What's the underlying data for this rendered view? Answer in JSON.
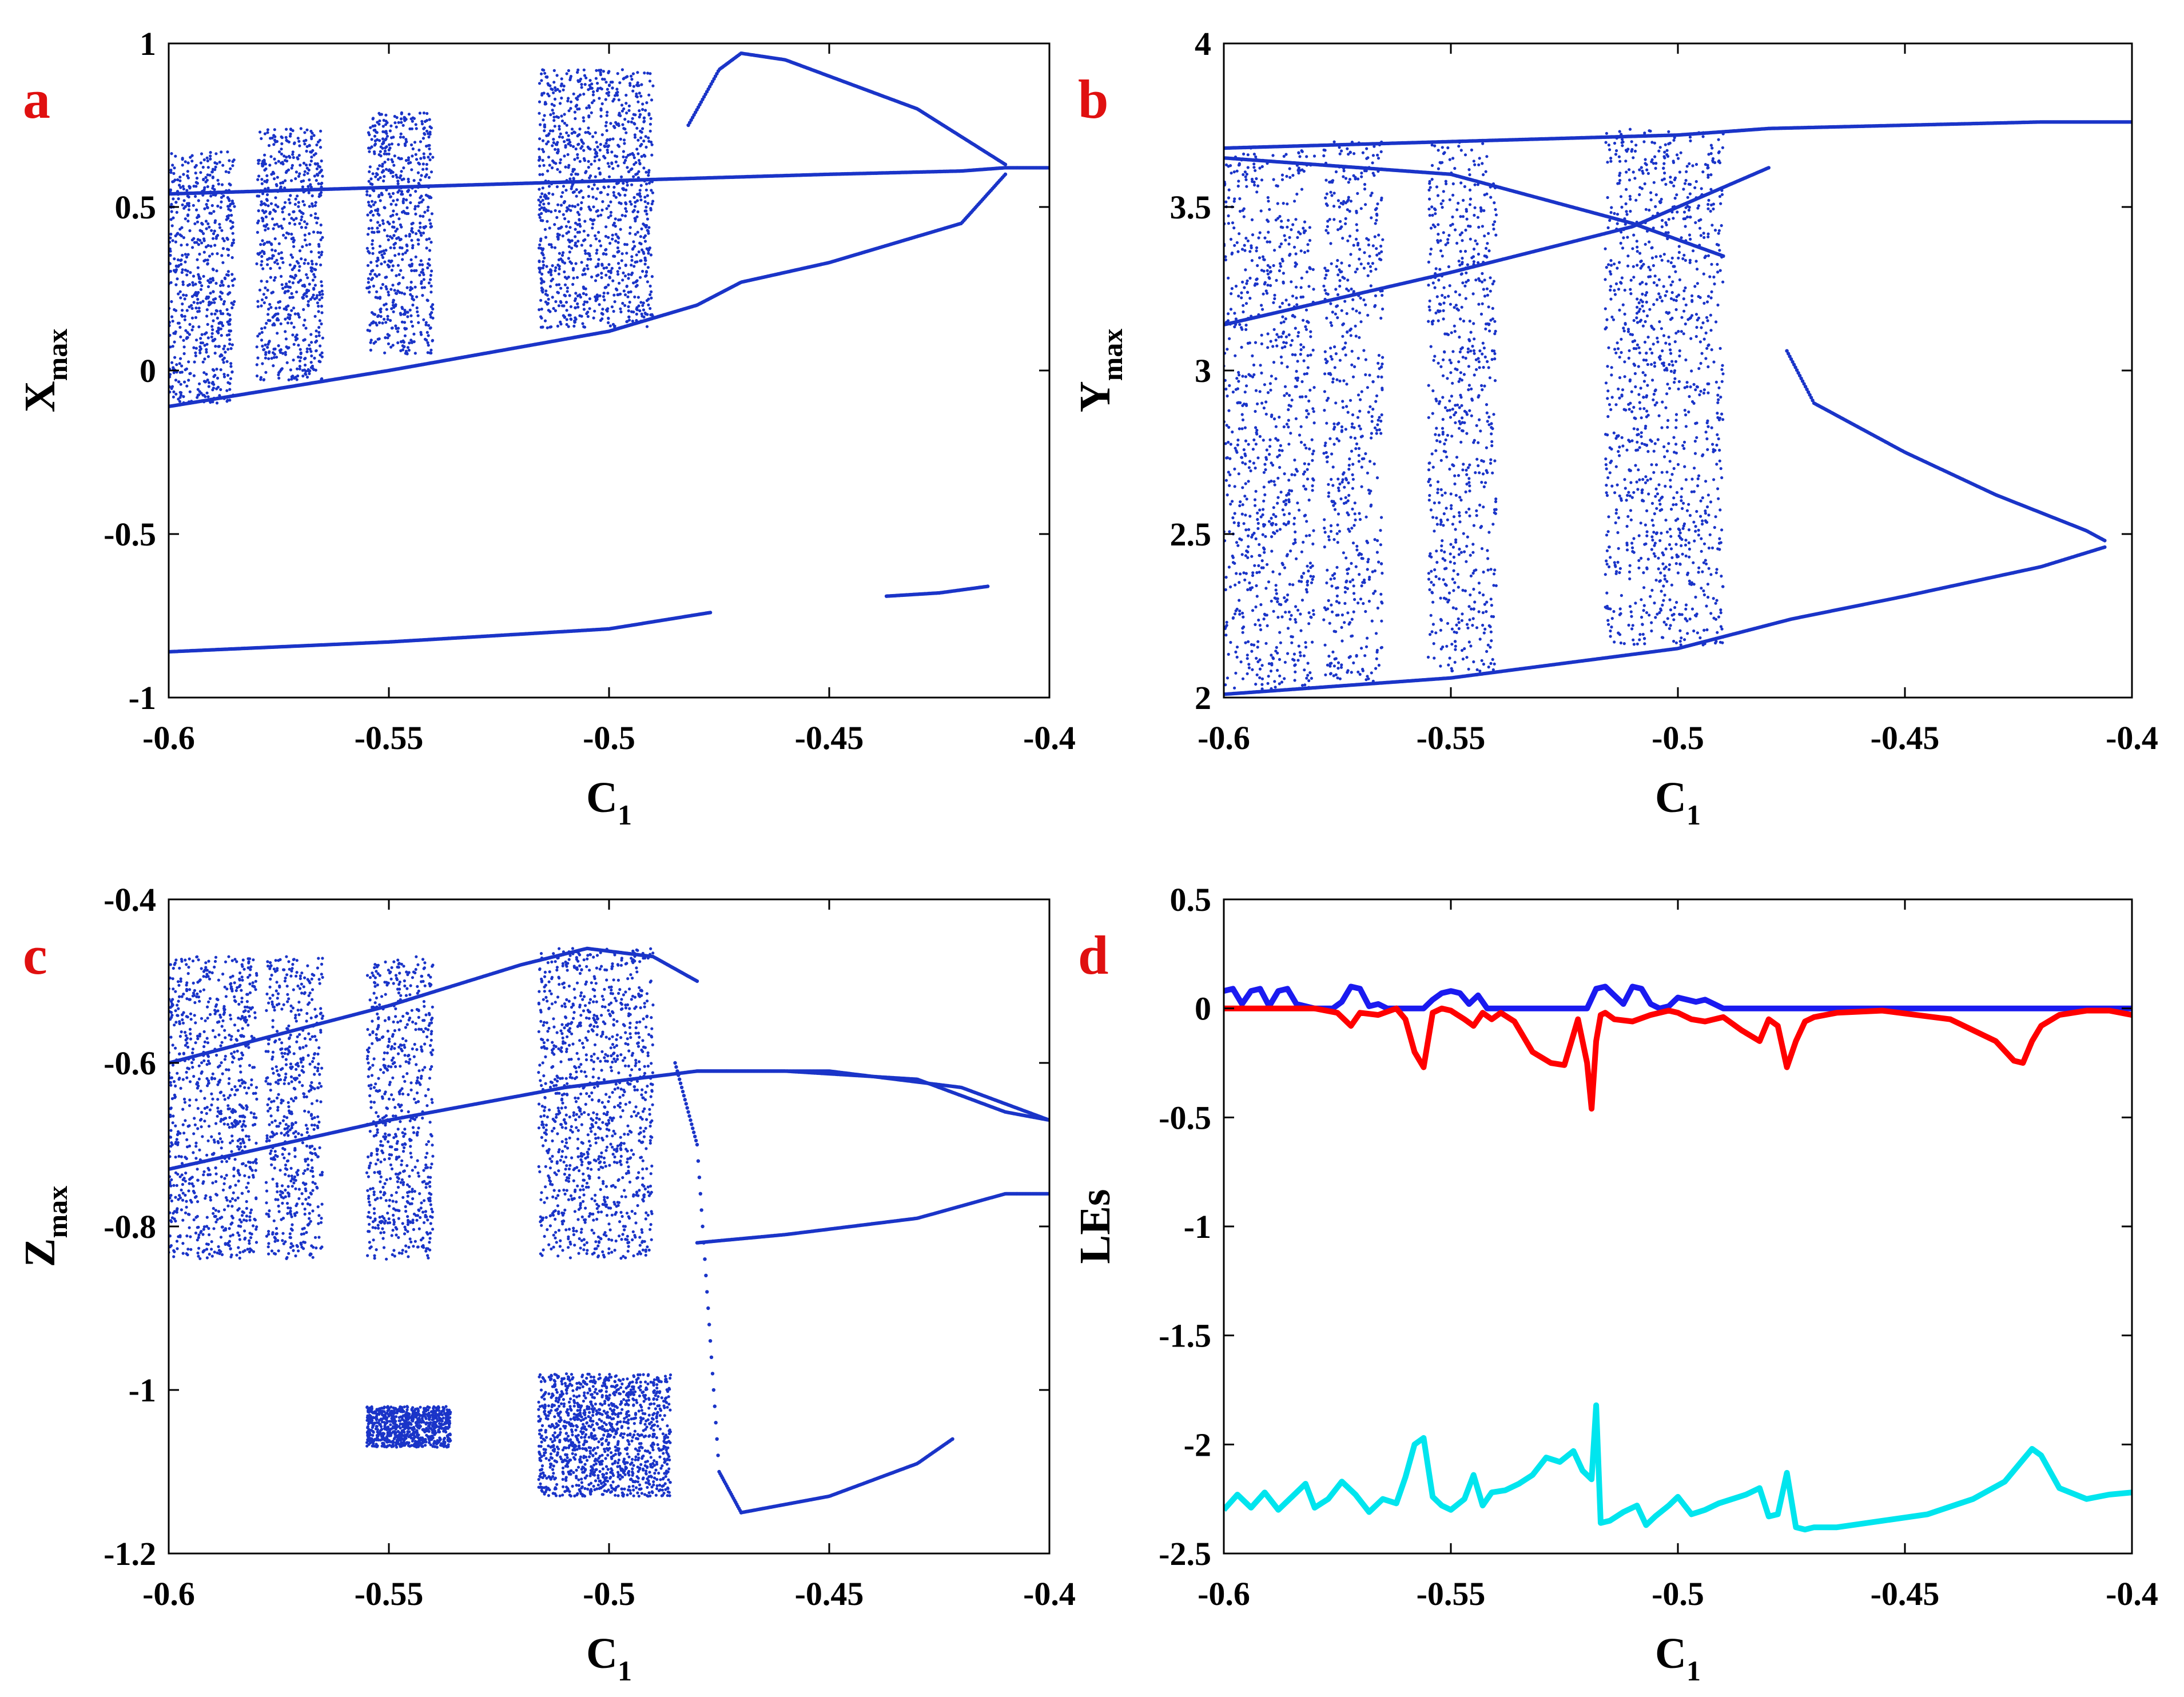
{
  "figure": {
    "panel_letter_color": "#e01010",
    "dot_color": "#1a34c8"
  },
  "chart_data": [
    {
      "id": "a",
      "letter": "a",
      "type": "scatter",
      "title": "",
      "xlabel": "C",
      "xlabel_sub": "1",
      "ylabel": "X",
      "ylabel_sub": "max",
      "xlim": [
        -0.6,
        -0.4
      ],
      "ylim": [
        -1,
        1
      ],
      "xticks": [
        -0.6,
        -0.55,
        -0.5,
        -0.45,
        -0.4
      ],
      "xtick_labels": [
        "-0.6",
        "-0.55",
        "-0.5",
        "-0.45",
        "-0.4"
      ],
      "yticks": [
        -1,
        -0.5,
        0,
        0.5,
        1
      ],
      "ytick_labels": [
        "-1",
        "-0.5",
        "0",
        "0.5",
        "1"
      ],
      "grid": false,
      "description_series": [
        {
          "name": "upper branch",
          "x": [
            -0.6,
            -0.55,
            -0.5,
            -0.475,
            -0.45,
            -0.42,
            -0.41,
            -0.4
          ],
          "y": [
            0.54,
            0.56,
            0.58,
            0.59,
            0.6,
            0.61,
            0.62,
            0.62
          ]
        },
        {
          "name": "lower envelope",
          "x": [
            -0.6,
            -0.55,
            -0.5,
            -0.48,
            -0.47,
            -0.45,
            -0.42,
            -0.41
          ],
          "y": [
            -0.11,
            0.0,
            0.12,
            0.2,
            0.27,
            0.33,
            0.45,
            0.6
          ]
        },
        {
          "name": "period-doubled top",
          "x": [
            -0.482,
            -0.475,
            -0.47,
            -0.46,
            -0.45,
            -0.43,
            -0.41
          ],
          "y": [
            0.75,
            0.92,
            0.97,
            0.95,
            0.9,
            0.8,
            0.63
          ]
        },
        {
          "name": "negative branch 1",
          "x": [
            -0.6,
            -0.55,
            -0.5,
            -0.477
          ],
          "y": [
            -0.86,
            -0.83,
            -0.79,
            -0.74
          ]
        },
        {
          "name": "negative branch 2",
          "x": [
            -0.437,
            -0.425,
            -0.414
          ],
          "y": [
            -0.69,
            -0.68,
            -0.66
          ]
        }
      ],
      "chaotic_bands": [
        {
          "x": [
            -0.6,
            -0.585
          ],
          "y": [
            -0.1,
            0.67
          ]
        },
        {
          "x": [
            -0.58,
            -0.565
          ],
          "y": [
            -0.03,
            0.74
          ]
        },
        {
          "x": [
            -0.555,
            -0.54
          ],
          "y": [
            0.05,
            0.79
          ]
        },
        {
          "x": [
            -0.516,
            -0.49
          ],
          "y": [
            0.13,
            0.92
          ]
        }
      ]
    },
    {
      "id": "b",
      "letter": "b",
      "type": "scatter",
      "title": "",
      "xlabel": "C",
      "xlabel_sub": "1",
      "ylabel": "Y",
      "ylabel_sub": "max",
      "xlim": [
        -0.6,
        -0.4
      ],
      "ylim": [
        2,
        4
      ],
      "xticks": [
        -0.6,
        -0.55,
        -0.5,
        -0.45,
        -0.4
      ],
      "xtick_labels": [
        "-0.6",
        "-0.55",
        "-0.5",
        "-0.45",
        "-0.4"
      ],
      "yticks": [
        2,
        2.5,
        3,
        3.5,
        4
      ],
      "ytick_labels": [
        "2",
        "2.5",
        "3",
        "3.5",
        "4"
      ],
      "grid": false,
      "description_series": [
        {
          "name": "bottom branch",
          "x": [
            -0.6,
            -0.55,
            -0.5,
            -0.475,
            -0.45,
            -0.42,
            -0.406
          ],
          "y": [
            2.01,
            2.06,
            2.15,
            2.24,
            2.31,
            2.4,
            2.46
          ]
        },
        {
          "name": "top branch",
          "x": [
            -0.6,
            -0.55,
            -0.5,
            -0.48,
            -0.45,
            -0.42,
            -0.4
          ],
          "y": [
            3.68,
            3.7,
            3.72,
            3.74,
            3.75,
            3.76,
            3.76
          ]
        },
        {
          "name": "crossing up",
          "x": [
            -0.6,
            -0.55,
            -0.51,
            -0.48
          ],
          "y": [
            3.14,
            3.3,
            3.44,
            3.62
          ]
        },
        {
          "name": "crossing down",
          "x": [
            -0.6,
            -0.55,
            -0.51,
            -0.49
          ],
          "y": [
            3.65,
            3.6,
            3.45,
            3.35
          ]
        },
        {
          "name": "right loop upper",
          "x": [
            -0.476,
            -0.47,
            -0.45,
            -0.43,
            -0.41,
            -0.406
          ],
          "y": [
            3.06,
            2.9,
            2.75,
            2.62,
            2.51,
            2.48
          ]
        }
      ],
      "chaotic_bands": [
        {
          "x": [
            -0.6,
            -0.58
          ],
          "y": [
            2.01,
            3.68
          ]
        },
        {
          "x": [
            -0.578,
            -0.565
          ],
          "y": [
            2.05,
            3.7
          ]
        },
        {
          "x": [
            -0.555,
            -0.54
          ],
          "y": [
            2.08,
            3.71
          ]
        },
        {
          "x": [
            -0.516,
            -0.49
          ],
          "y": [
            2.16,
            3.74
          ]
        }
      ]
    },
    {
      "id": "c",
      "letter": "c",
      "type": "scatter",
      "title": "",
      "xlabel": "C",
      "xlabel_sub": "1",
      "ylabel": "Z",
      "ylabel_sub": "max",
      "xlim": [
        -0.6,
        -0.4
      ],
      "ylim": [
        -1.2,
        -0.4
      ],
      "xticks": [
        -0.6,
        -0.55,
        -0.5,
        -0.45,
        -0.4
      ],
      "xtick_labels": [
        "-0.6",
        "-0.55",
        "-0.5",
        "-0.45",
        "-0.4"
      ],
      "yticks": [
        -1.2,
        -1,
        -0.8,
        -0.6,
        -0.4
      ],
      "ytick_labels": [
        "-1.2",
        "-1",
        "-0.8",
        "-0.6",
        "-0.4"
      ],
      "grid": false,
      "description_series": [
        {
          "name": "top arc",
          "x": [
            -0.6,
            -0.55,
            -0.52,
            -0.505,
            -0.49,
            -0.48
          ],
          "y": [
            -0.6,
            -0.53,
            -0.48,
            -0.46,
            -0.47,
            -0.5
          ]
        },
        {
          "name": "upper loop",
          "x": [
            -0.48,
            -0.46,
            -0.43,
            -0.41,
            -0.4
          ],
          "y": [
            -0.61,
            -0.61,
            -0.62,
            -0.66,
            -0.67
          ]
        },
        {
          "name": "middle branch",
          "x": [
            -0.6,
            -0.55,
            -0.51,
            -0.48,
            -0.45,
            -0.42,
            -0.405,
            -0.4
          ],
          "y": [
            -0.73,
            -0.67,
            -0.63,
            -0.61,
            -0.61,
            -0.63,
            -0.66,
            -0.67
          ]
        },
        {
          "name": "lower loop",
          "x": [
            -0.48,
            -0.46,
            -0.43,
            -0.41,
            -0.4
          ],
          "y": [
            -0.82,
            -0.81,
            -0.79,
            -0.76,
            -0.76
          ]
        },
        {
          "name": "falling branch",
          "x": [
            -0.485,
            -0.48,
            -0.475,
            -0.47
          ],
          "y": [
            -0.6,
            -0.7,
            -1.1,
            -1.15
          ]
        },
        {
          "name": "lower tail",
          "x": [
            -0.47,
            -0.45,
            -0.43,
            -0.422
          ],
          "y": [
            -1.15,
            -1.13,
            -1.09,
            -1.06
          ]
        }
      ],
      "chaotic_bands": [
        {
          "x": [
            -0.6,
            -0.58
          ],
          "y": [
            -0.84,
            -0.47
          ]
        },
        {
          "x": [
            -0.578,
            -0.565
          ],
          "y": [
            -0.84,
            -0.47
          ]
        },
        {
          "x": [
            -0.555,
            -0.54
          ],
          "y": [
            -0.84,
            -0.47
          ]
        },
        {
          "x": [
            -0.516,
            -0.49
          ],
          "y": [
            -0.84,
            -0.46
          ]
        },
        {
          "x": [
            -0.555,
            -0.536
          ],
          "y": [
            -1.07,
            -1.02
          ]
        },
        {
          "x": [
            -0.516,
            -0.486
          ],
          "y": [
            -1.13,
            -0.98
          ]
        }
      ]
    },
    {
      "id": "d",
      "letter": "d",
      "type": "line",
      "title": "",
      "xlabel": "C",
      "xlabel_sub": "1",
      "ylabel": "LEs",
      "ylabel_sub": "",
      "xlim": [
        -0.6,
        -0.4
      ],
      "ylim": [
        -2.5,
        0.5
      ],
      "xticks": [
        -0.6,
        -0.55,
        -0.5,
        -0.45,
        -0.4
      ],
      "xtick_labels": [
        "-0.6",
        "-0.55",
        "-0.5",
        "-0.45",
        "-0.4"
      ],
      "yticks": [
        -2.5,
        -2,
        -1.5,
        -1,
        -0.5,
        0,
        0.5
      ],
      "ytick_labels": [
        "-2.5",
        "-2",
        "-1.5",
        "-1",
        "-0.5",
        "0",
        "0.5"
      ],
      "grid": false,
      "series": [
        {
          "name": "LE1",
          "color": "#1a1af0",
          "x": [
            -0.6,
            -0.598,
            -0.596,
            -0.594,
            -0.592,
            -0.59,
            -0.588,
            -0.586,
            -0.584,
            -0.582,
            -0.58,
            -0.578,
            -0.576,
            -0.574,
            -0.572,
            -0.57,
            -0.568,
            -0.566,
            -0.564,
            -0.562,
            -0.56,
            -0.558,
            -0.556,
            -0.554,
            -0.552,
            -0.55,
            -0.548,
            -0.546,
            -0.544,
            -0.542,
            -0.54,
            -0.53,
            -0.52,
            -0.518,
            -0.516,
            -0.514,
            -0.512,
            -0.51,
            -0.508,
            -0.506,
            -0.504,
            -0.502,
            -0.5,
            -0.498,
            -0.496,
            -0.494,
            -0.492,
            -0.49,
            -0.488,
            -0.486,
            -0.48,
            -0.45,
            -0.4
          ],
          "y": [
            0.08,
            0.09,
            0.02,
            0.08,
            0.09,
            0.01,
            0.08,
            0.09,
            0.02,
            0.01,
            0.0,
            0.0,
            0.0,
            0.03,
            0.1,
            0.09,
            0.01,
            0.02,
            0.0,
            0.0,
            0.0,
            0.0,
            0.0,
            0.04,
            0.07,
            0.08,
            0.07,
            0.02,
            0.06,
            0.0,
            0.0,
            0.0,
            0.0,
            0.09,
            0.1,
            0.06,
            0.02,
            0.1,
            0.09,
            0.02,
            0.0,
            0.01,
            0.05,
            0.04,
            0.03,
            0.04,
            0.02,
            0.0,
            0.0,
            0.0,
            0.0,
            0.0,
            0.0
          ]
        },
        {
          "name": "LE2",
          "color": "#ff0000",
          "x": [
            -0.6,
            -0.59,
            -0.58,
            -0.575,
            -0.572,
            -0.57,
            -0.566,
            -0.562,
            -0.56,
            -0.558,
            -0.556,
            -0.554,
            -0.552,
            -0.55,
            -0.547,
            -0.545,
            -0.543,
            -0.541,
            -0.539,
            -0.536,
            -0.532,
            -0.528,
            -0.525,
            -0.522,
            -0.52,
            -0.519,
            -0.518,
            -0.517,
            -0.516,
            -0.514,
            -0.51,
            -0.506,
            -0.502,
            -0.5,
            -0.497,
            -0.494,
            -0.49,
            -0.486,
            -0.482,
            -0.48,
            -0.478,
            -0.476,
            -0.474,
            -0.472,
            -0.47,
            -0.465,
            -0.455,
            -0.44,
            -0.43,
            -0.426,
            -0.424,
            -0.422,
            -0.42,
            -0.416,
            -0.41,
            -0.405,
            -0.4
          ],
          "y": [
            0.0,
            0.0,
            0.0,
            -0.02,
            -0.08,
            -0.02,
            -0.03,
            0.0,
            -0.05,
            -0.2,
            -0.27,
            -0.02,
            0.0,
            -0.01,
            -0.05,
            -0.08,
            -0.02,
            -0.05,
            -0.02,
            -0.06,
            -0.2,
            -0.25,
            -0.26,
            -0.05,
            -0.25,
            -0.46,
            -0.15,
            -0.03,
            -0.02,
            -0.05,
            -0.06,
            -0.03,
            -0.01,
            -0.02,
            -0.05,
            -0.06,
            -0.04,
            -0.1,
            -0.15,
            -0.05,
            -0.08,
            -0.27,
            -0.15,
            -0.06,
            -0.04,
            -0.02,
            -0.01,
            -0.05,
            -0.15,
            -0.24,
            -0.25,
            -0.15,
            -0.08,
            -0.03,
            -0.01,
            -0.01,
            -0.03
          ]
        },
        {
          "name": "LE3",
          "color": "#00e5ee",
          "x": [
            -0.6,
            -0.597,
            -0.594,
            -0.591,
            -0.588,
            -0.585,
            -0.582,
            -0.58,
            -0.577,
            -0.574,
            -0.571,
            -0.568,
            -0.565,
            -0.562,
            -0.56,
            -0.558,
            -0.556,
            -0.554,
            -0.552,
            -0.55,
            -0.547,
            -0.545,
            -0.543,
            -0.541,
            -0.538,
            -0.535,
            -0.532,
            -0.529,
            -0.526,
            -0.523,
            -0.521,
            -0.519,
            -0.518,
            -0.517,
            -0.515,
            -0.512,
            -0.509,
            -0.507,
            -0.505,
            -0.502,
            -0.5,
            -0.497,
            -0.494,
            -0.491,
            -0.488,
            -0.485,
            -0.482,
            -0.48,
            -0.478,
            -0.476,
            -0.474,
            -0.472,
            -0.47,
            -0.465,
            -0.455,
            -0.445,
            -0.435,
            -0.428,
            -0.424,
            -0.422,
            -0.42,
            -0.416,
            -0.41,
            -0.405,
            -0.4
          ],
          "y": [
            -2.3,
            -2.23,
            -2.29,
            -2.22,
            -2.3,
            -2.24,
            -2.18,
            -2.29,
            -2.25,
            -2.17,
            -2.23,
            -2.31,
            -2.25,
            -2.27,
            -2.15,
            -2.0,
            -1.97,
            -2.24,
            -2.28,
            -2.3,
            -2.25,
            -2.14,
            -2.28,
            -2.22,
            -2.21,
            -2.18,
            -2.14,
            -2.06,
            -2.08,
            -2.03,
            -2.12,
            -2.16,
            -1.82,
            -2.36,
            -2.35,
            -2.31,
            -2.28,
            -2.37,
            -2.33,
            -2.28,
            -2.24,
            -2.32,
            -2.3,
            -2.27,
            -2.25,
            -2.23,
            -2.2,
            -2.33,
            -2.32,
            -2.13,
            -2.38,
            -2.39,
            -2.38,
            -2.38,
            -2.35,
            -2.32,
            -2.25,
            -2.17,
            -2.07,
            -2.02,
            -2.05,
            -2.2,
            -2.25,
            -2.23,
            -2.22
          ]
        }
      ]
    }
  ]
}
